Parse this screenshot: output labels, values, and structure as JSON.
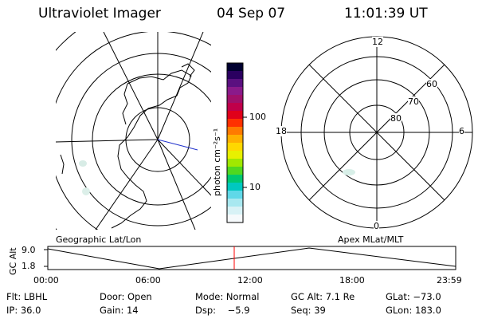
{
  "header": {
    "instrument": "Ultraviolet Imager",
    "date": "04 Sep 07",
    "time": "11:01:39 UT"
  },
  "colorbar": {
    "label": "photon cm⁻²s⁻¹",
    "ticks": [
      "100",
      "10"
    ],
    "colors": [
      "#000030",
      "#2a0060",
      "#5a1080",
      "#8a1a8a",
      "#a0106a",
      "#c0004a",
      "#e0001a",
      "#ff3000",
      "#ff7a00",
      "#ffb000",
      "#ffd800",
      "#e8f000",
      "#a0e800",
      "#50d820",
      "#00c870",
      "#00c8c0",
      "#60d8e8",
      "#a8e8f0",
      "#d8f2f6",
      "#f6fafc"
    ]
  },
  "left_map": {
    "caption": "Geographic Lat/Lon"
  },
  "right_map": {
    "caption": "Apex MLat/MLT",
    "mlt_labels": {
      "top": "12",
      "left": "18",
      "right": "6",
      "bottom": "0"
    },
    "mlat_labels": [
      "60",
      "70",
      "80"
    ]
  },
  "altitude_plot": {
    "ylabel": "GC Alt",
    "yticks": [
      "9.0",
      "1.8"
    ],
    "xticks": [
      "00:00",
      "06:00",
      "12:00",
      "18:00",
      "23:59"
    ],
    "current_time_marker_color": "#ff0000"
  },
  "status": {
    "row1": {
      "flt": "Flt: LBHL",
      "door": "Door: Open",
      "mode": "Mode: Normal",
      "gcalt": "GC Alt: 7.1 Re",
      "glat": "GLat: −73.0"
    },
    "row2": {
      "ip": "IP: 36.0",
      "gain": "Gain: 14",
      "dsp": "Dsp:    −5.9",
      "seq": "Seq: 39",
      "glon": "GLon: 183.0"
    }
  }
}
